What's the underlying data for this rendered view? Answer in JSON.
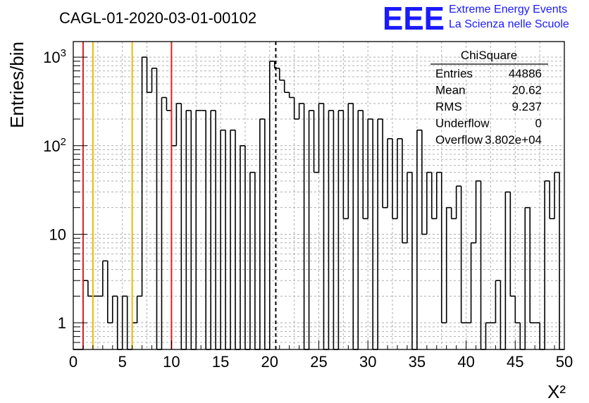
{
  "chart_data": {
    "type": "histogram",
    "title": "CAGL-01-2020-03-01-00102",
    "xlabel": "X²",
    "ylabel": "Entries/bin",
    "xlim": [
      0,
      50
    ],
    "ylim": [
      0.5,
      1500
    ],
    "y_scale": "log",
    "grid": true,
    "bin_width": 0.5,
    "x_ticks": [
      "0",
      "5",
      "10",
      "15",
      "20",
      "25",
      "30",
      "35",
      "40",
      "45",
      "50"
    ],
    "y_ticks": [
      {
        "value": 1,
        "label": "1"
      },
      {
        "value": 10,
        "label": "10"
      },
      {
        "value": 100,
        "label": "10",
        "sup": "2"
      },
      {
        "value": 1000,
        "label": "10",
        "sup": "3"
      }
    ],
    "bin_values": [
      0,
      0,
      3,
      2,
      2,
      2,
      5,
      1,
      2,
      0,
      2,
      0,
      1,
      2,
      1000,
      400,
      750,
      0,
      350,
      250,
      100,
      300,
      0,
      250,
      0,
      250,
      250,
      0,
      250,
      0,
      150,
      0,
      150,
      0,
      100,
      0,
      50,
      0,
      200,
      0,
      900,
      750,
      550,
      400,
      350,
      200,
      300,
      0,
      250,
      50,
      300,
      0,
      250,
      0,
      250,
      15,
      300,
      0,
      250,
      15,
      200,
      0,
      200,
      20,
      120,
      15,
      120,
      8,
      50,
      0,
      150,
      10,
      50,
      15,
      50,
      1,
      20,
      15,
      35,
      1,
      1,
      8,
      40,
      0,
      1,
      1,
      3,
      0,
      30,
      2,
      1,
      0,
      20,
      1,
      1,
      0,
      40,
      15,
      50,
      0
    ],
    "vertical_lines": [
      {
        "x": 1,
        "color": "#e02020",
        "style": "solid"
      },
      {
        "x": 2,
        "color": "#f0b800",
        "style": "solid"
      },
      {
        "x": 6,
        "color": "#f0b800",
        "style": "solid"
      },
      {
        "x": 10,
        "color": "#e02020",
        "style": "solid"
      },
      {
        "x": 20.62,
        "color": "#000000",
        "style": "dashed"
      }
    ],
    "stats_box": {
      "title": "ChiSquare",
      "rows": [
        {
          "label": "Entries",
          "value": "44886"
        },
        {
          "label": "Mean",
          "value": "20.62"
        },
        {
          "label": "RMS",
          "value": "9.237"
        },
        {
          "label": "Underflow",
          "value": "0"
        },
        {
          "label": "Overflow",
          "value": "3.802e+04"
        }
      ]
    }
  },
  "logo": {
    "mark": "EEE",
    "line1": "Extreme Energy Events",
    "line2": "La Scienza nelle Scuole"
  }
}
